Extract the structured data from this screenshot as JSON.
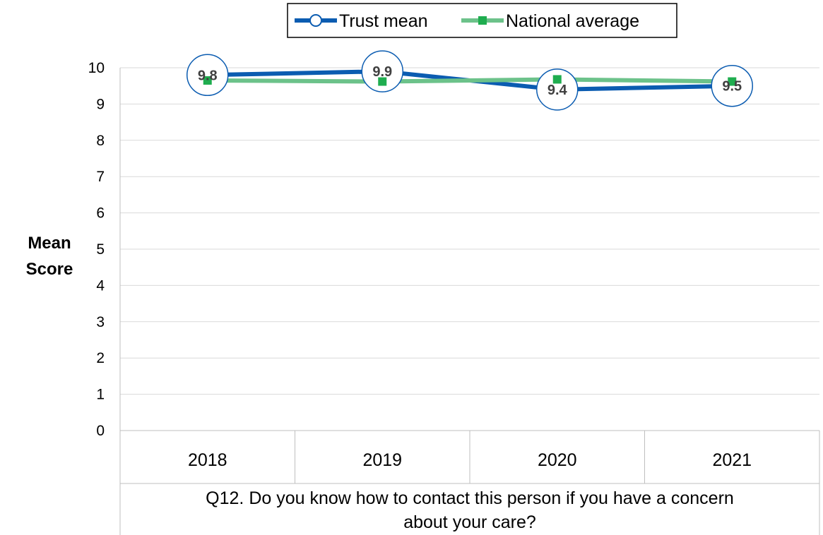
{
  "chart_data": {
    "type": "line",
    "categories": [
      "2018",
      "2019",
      "2020",
      "2021"
    ],
    "category_group_label": "Q12. Do you know how to contact this person if you have a concern about your care?",
    "category_group_lines": [
      "Q12. Do you know how to contact this person if you have a concern",
      "about your care?"
    ],
    "ylabel_lines": [
      "Mean",
      "Score"
    ],
    "ylim": [
      0,
      10
    ],
    "yticks": [
      0,
      1,
      2,
      3,
      4,
      5,
      6,
      7,
      8,
      9,
      10
    ],
    "grid": true,
    "legend_position": "top",
    "series": [
      {
        "name": "Trust mean",
        "values": [
          9.8,
          9.9,
          9.4,
          9.5
        ],
        "data_labels": [
          "9.8",
          "9.9",
          "9.4",
          "9.5"
        ],
        "color": "#0b5cb1",
        "marker": "circle"
      },
      {
        "name": "National average",
        "values": [
          9.65,
          9.62,
          9.68,
          9.62
        ],
        "color": "#6cc28a",
        "marker_color": "#1fad4f",
        "marker": "square"
      }
    ]
  }
}
